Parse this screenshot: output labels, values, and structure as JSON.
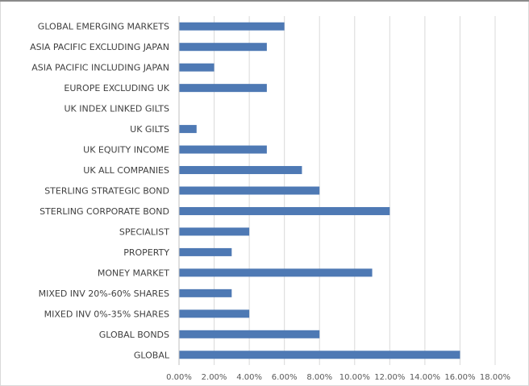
{
  "chart_data": {
    "type": "bar",
    "orientation": "horizontal",
    "title": "",
    "xlabel": "",
    "ylabel": "",
    "categories": [
      "GLOBAL EMERGING MARKETS",
      "ASIA PACIFIC EXCLUDING JAPAN",
      "ASIA PACIFIC INCLUDING JAPAN",
      "EUROPE EXCLUDING UK",
      "UK INDEX LINKED GILTS",
      "UK GILTS",
      "UK EQUITY INCOME",
      "UK ALL COMPANIES",
      "STERLING STRATEGIC BOND",
      "STERLING CORPORATE BOND",
      "SPECIALIST",
      "PROPERTY",
      "MONEY MARKET",
      "MIXED INV 20%-60% SHARES",
      "MIXED INV 0%-35% SHARES",
      "GLOBAL BONDS",
      "GLOBAL"
    ],
    "values": [
      6,
      5,
      2,
      5,
      0,
      1,
      5,
      7,
      8,
      12,
      4,
      3,
      11,
      3,
      4,
      8,
      16
    ],
    "xlim": [
      0,
      18
    ],
    "xticks": [
      0,
      2,
      4,
      6,
      8,
      10,
      12,
      14,
      16,
      18
    ],
    "xtick_labels": [
      "0.00%",
      "2.00%",
      "4.00%",
      "6.00%",
      "8.00%",
      "10.00%",
      "12.00%",
      "14.00%",
      "16.00%",
      "18.00%"
    ],
    "bar_color": "#4e79b4",
    "grid": true,
    "legend": "none"
  }
}
